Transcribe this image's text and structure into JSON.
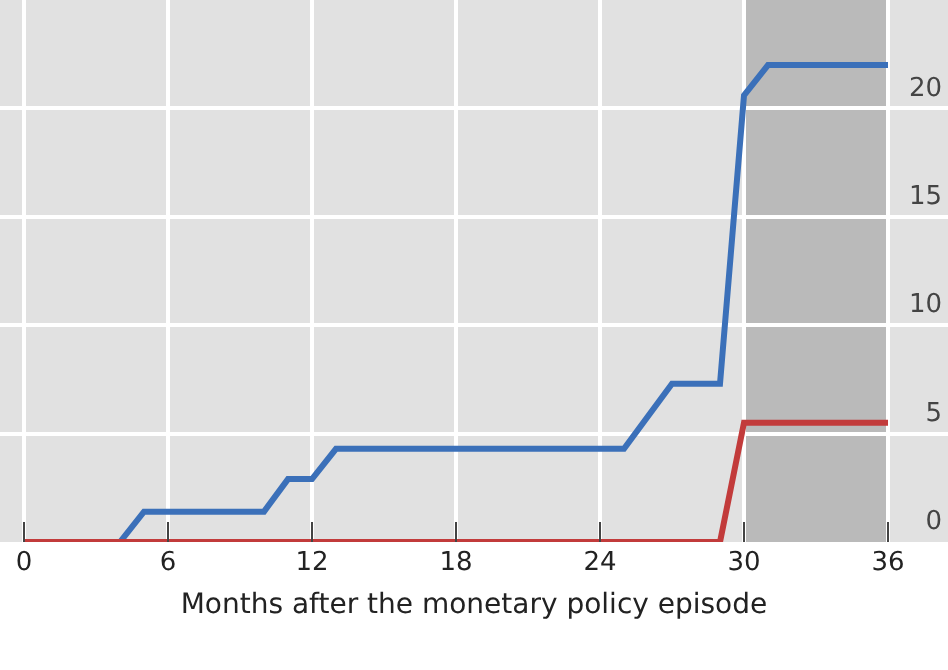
{
  "chart_data": {
    "type": "line",
    "xlabel": "Months after the monetary policy episode",
    "series": [
      {
        "color": "#3b70b9",
        "x": [
          0,
          4,
          5,
          10,
          11,
          12,
          13,
          25,
          27,
          29,
          30,
          31,
          36
        ],
        "values": [
          0,
          0,
          1.4,
          1.4,
          2.9,
          2.9,
          4.3,
          4.3,
          7.3,
          7.3,
          20.6,
          22,
          22
        ]
      },
      {
        "color": "#c23b3b",
        "x": [
          0,
          29,
          30,
          36
        ],
        "values": [
          0,
          0,
          5.5,
          5.5
        ]
      }
    ],
    "xlim": [
      -1,
      38.5
    ],
    "xticks": [
      0,
      6,
      12,
      18,
      24,
      30,
      36
    ],
    "ylim": [
      0,
      25
    ],
    "yticks": [
      0,
      5,
      10,
      15,
      20
    ],
    "bands": [
      {
        "axis": "x",
        "from": 30,
        "to": 36,
        "color": "#bababa"
      }
    ],
    "grid": true,
    "marker": "none",
    "line_style": "solid"
  }
}
